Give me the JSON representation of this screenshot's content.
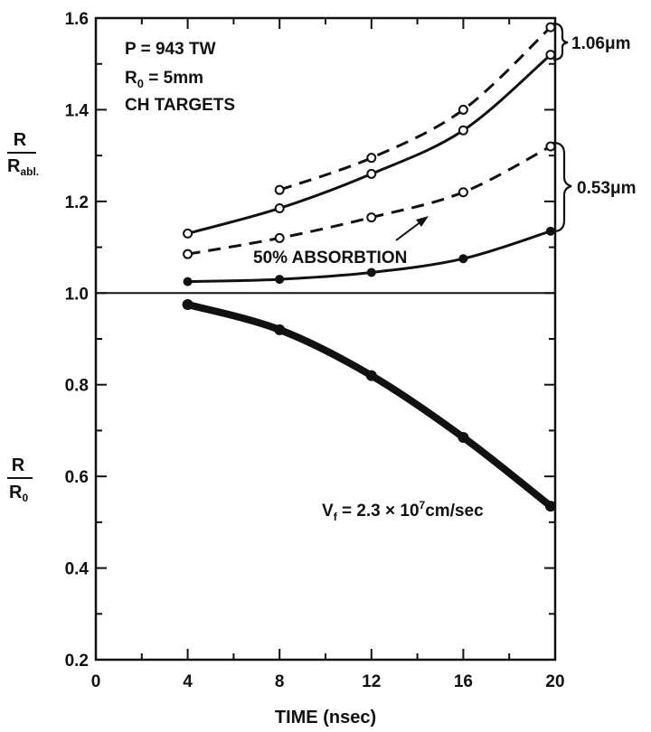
{
  "chart_data": {
    "type": "line",
    "xlabel": "TIME (nsec)",
    "xlim": [
      0,
      20
    ],
    "ylim": [
      0.2,
      1.6
    ],
    "x_ticks": [
      "0",
      "4",
      "8",
      "12",
      "16",
      "20"
    ],
    "y_ticks": [
      "0.2",
      "0.4",
      "0.6",
      "0.8",
      "1.0",
      "1.2",
      "1.4",
      "1.6"
    ],
    "ylabel_upper": {
      "num": "R",
      "den": "R",
      "den_sub": "abl."
    },
    "ylabel_lower": {
      "num": "R",
      "den": "R",
      "den_sub": "0"
    },
    "params": {
      "line1": "P = 943 TW",
      "line2_main": "R",
      "line2_sub": "0",
      "line2_rest": " = 5mm",
      "line3": "CH TARGETS"
    },
    "annotations": {
      "wl_106": "1.06μm",
      "wl_053": "0.53μm",
      "absorption": "50% ABSORBTION",
      "velocity_main": "V",
      "velocity_sub": "f",
      "velocity_mid": " = 2.3 × 10",
      "velocity_sup": "7",
      "velocity_end": "cm/sec"
    },
    "reference_line": 1.0,
    "series": [
      {
        "style": "dashed",
        "marker": "open",
        "x": [
          8,
          12,
          16,
          19.8
        ],
        "y": [
          1.225,
          1.295,
          1.4,
          1.58
        ]
      },
      {
        "style": "solid",
        "marker": "open",
        "x": [
          4,
          8,
          12,
          16,
          19.8
        ],
        "y": [
          1.13,
          1.185,
          1.26,
          1.355,
          1.52
        ]
      },
      {
        "style": "dashed",
        "marker": "open",
        "x": [
          4,
          8,
          12,
          16,
          19.8
        ],
        "y": [
          1.085,
          1.12,
          1.165,
          1.22,
          1.32
        ]
      },
      {
        "style": "solid",
        "marker": "filled",
        "x": [
          4,
          8,
          12,
          16,
          19.8
        ],
        "y": [
          1.025,
          1.03,
          1.045,
          1.075,
          1.135
        ]
      },
      {
        "style": "thick",
        "marker": "filled",
        "x": [
          4,
          8,
          12,
          16,
          19.8
        ],
        "y": [
          0.975,
          0.92,
          0.82,
          0.685,
          0.535
        ]
      }
    ]
  }
}
